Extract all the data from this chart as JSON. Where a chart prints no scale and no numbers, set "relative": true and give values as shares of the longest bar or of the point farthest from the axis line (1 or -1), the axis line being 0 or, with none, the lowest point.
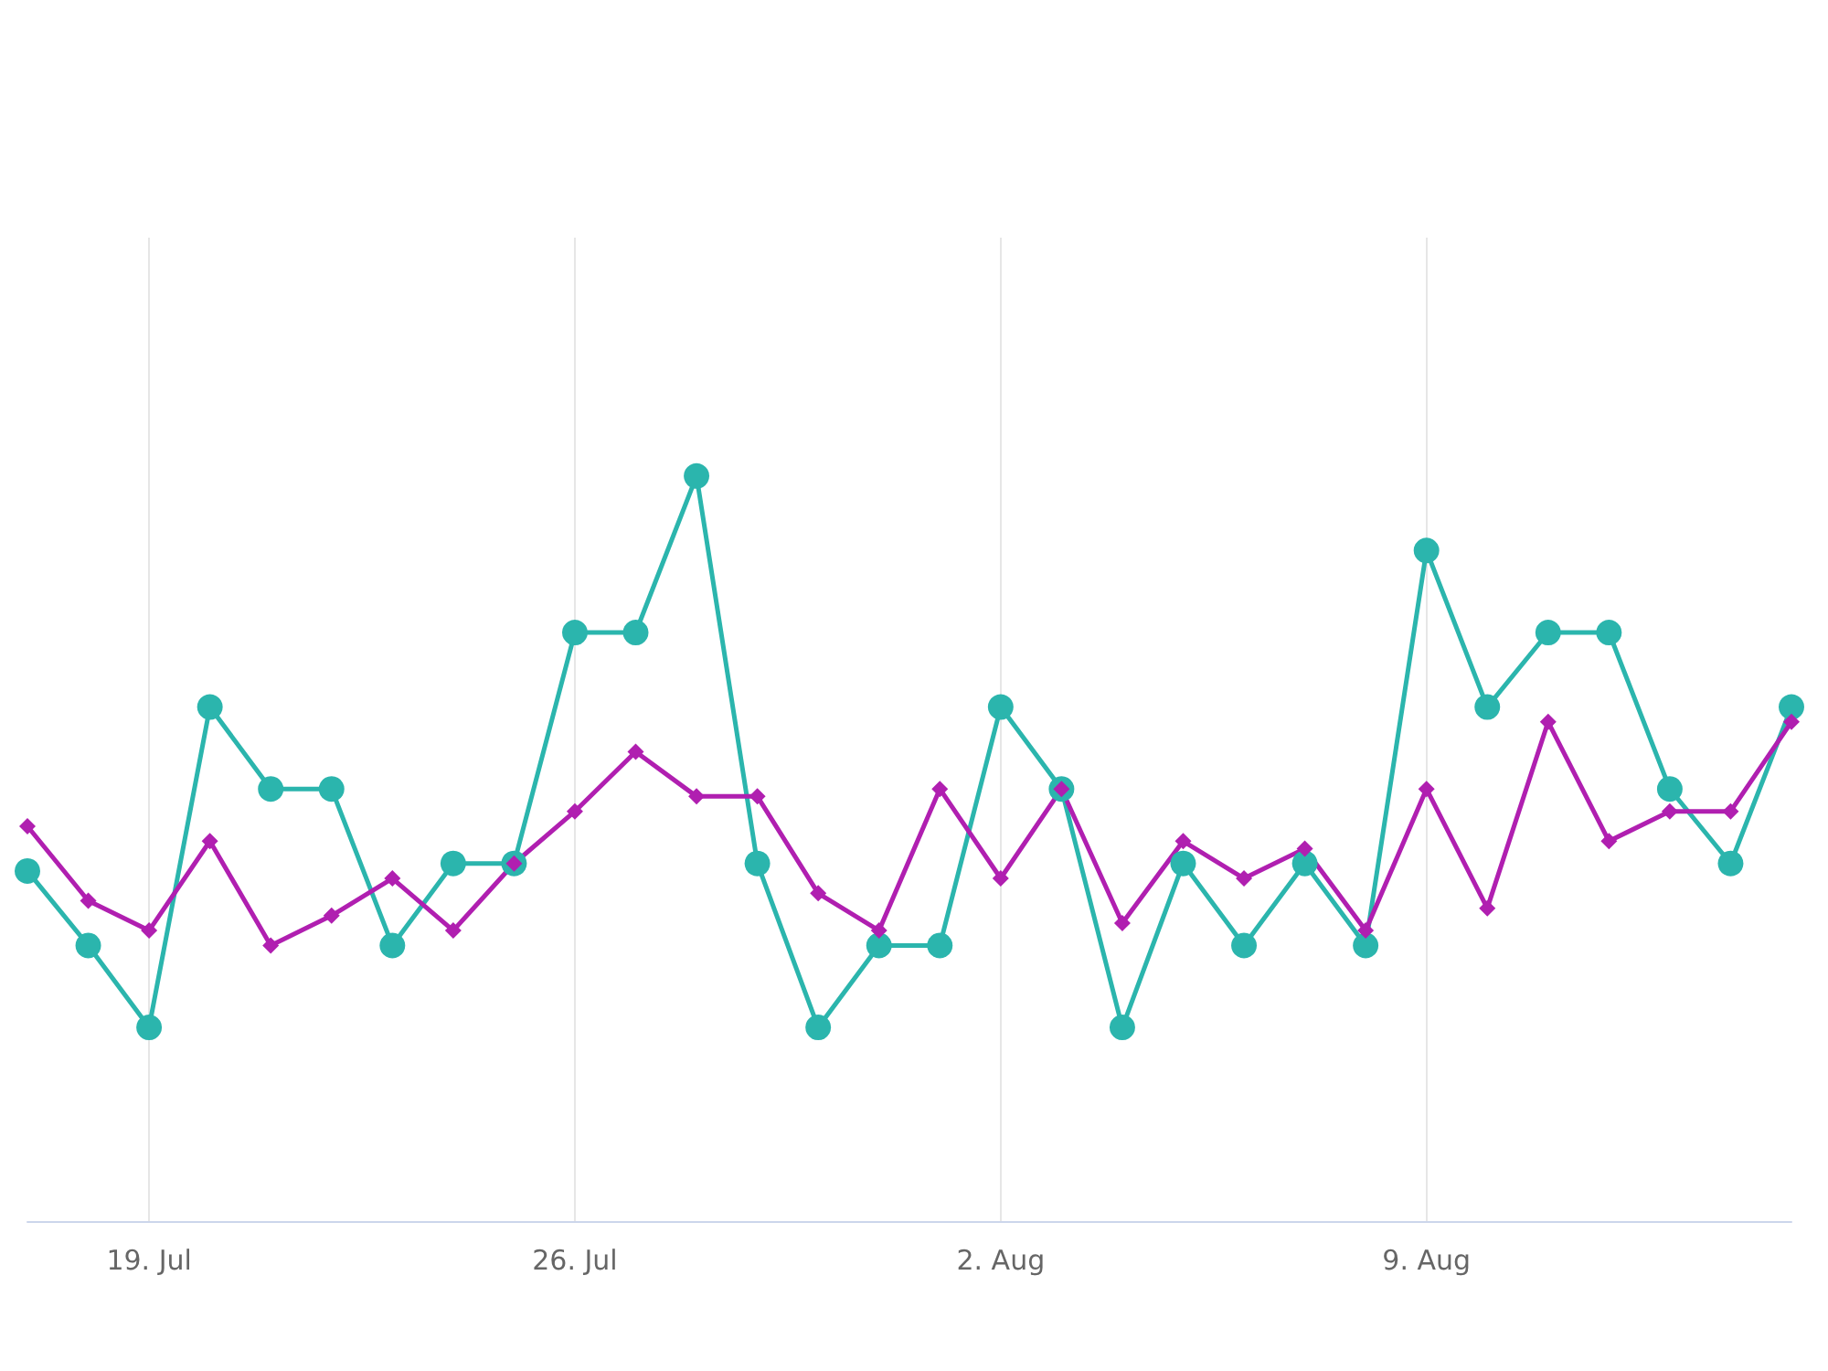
{
  "chart_data": {
    "type": "line",
    "relative": true,
    "grid": "x",
    "categories": [
      null,
      null,
      "19. Jul",
      null,
      null,
      null,
      null,
      null,
      null,
      "26. Jul",
      null,
      null,
      null,
      null,
      null,
      null,
      "2. Aug",
      null,
      null,
      null,
      null,
      null,
      null,
      "9. Aug",
      null,
      null,
      null,
      null,
      null,
      null
    ],
    "series": [
      {
        "color": "#2bb5ad",
        "marker": "circle",
        "values": [
          0.47,
          0.37,
          0.26,
          0.69,
          0.58,
          0.58,
          0.37,
          0.48,
          0.48,
          0.79,
          0.79,
          1,
          0.48,
          0.26,
          0.37,
          0.37,
          0.69,
          0.58,
          0.26,
          0.48,
          0.37,
          0.48,
          0.37,
          0.9,
          0.69,
          0.79,
          0.79,
          0.58,
          0.48,
          0.69
        ]
      },
      {
        "color": "#b01fb0",
        "marker": "diamond",
        "values": [
          0.53,
          0.43,
          0.39,
          0.51,
          0.37,
          0.41,
          0.46,
          0.39,
          0.48,
          0.55,
          0.63,
          0.57,
          0.57,
          0.44,
          0.39,
          0.58,
          0.46,
          0.58,
          0.4,
          0.51,
          0.46,
          0.5,
          0.39,
          0.58,
          0.42,
          0.67,
          0.51,
          0.55,
          0.55,
          0.67
        ]
      }
    ]
  }
}
